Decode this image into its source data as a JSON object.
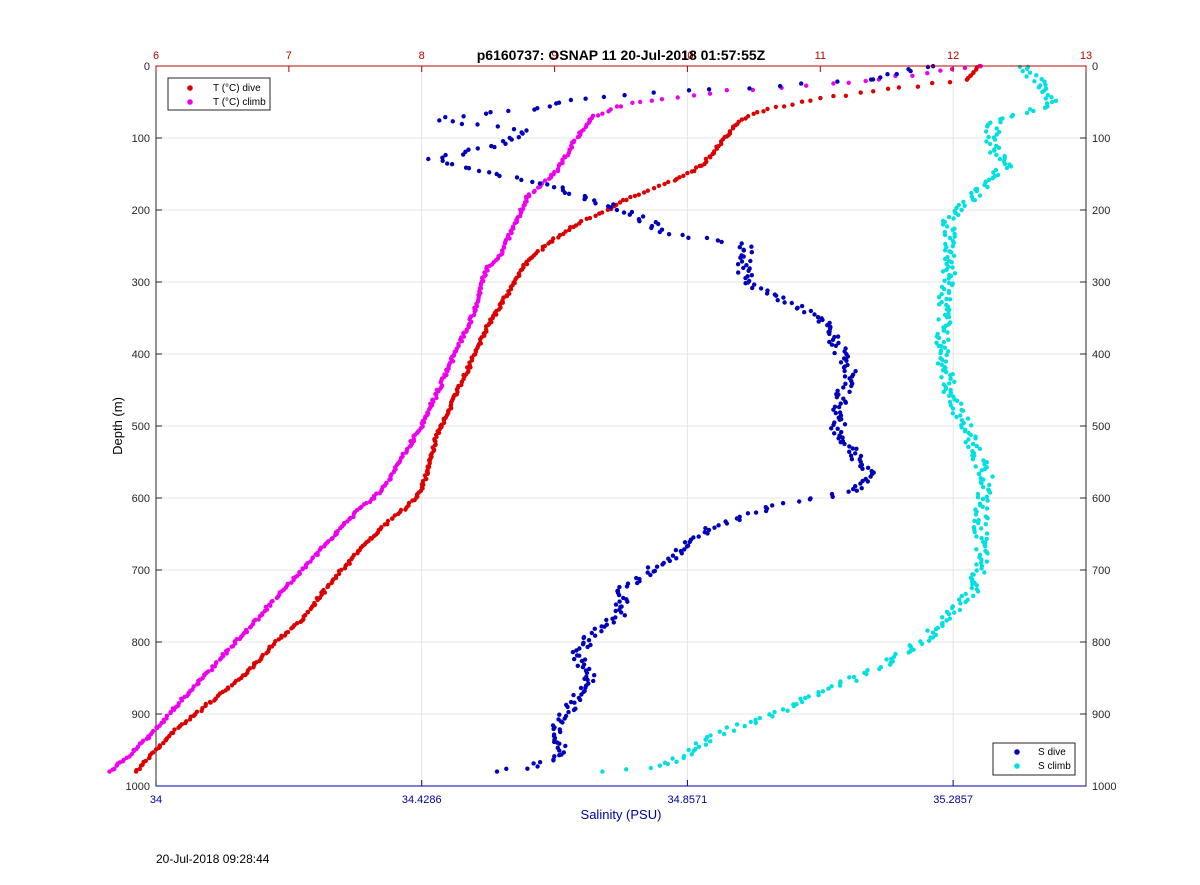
{
  "chart_data": {
    "type": "scatter",
    "title": "p6160737: OSNAP 11 20-Jul-2018 01:57:55Z",
    "ylabel": "Depth (m)",
    "xlabel_bottom": "Salinity (PSU)",
    "xlabel_top": "",
    "ylim": [
      0,
      1000
    ],
    "y_reversed": true,
    "yticks": [
      0,
      100,
      200,
      300,
      400,
      500,
      600,
      700,
      800,
      900,
      1000
    ],
    "top_axis": {
      "range": [
        6,
        13
      ],
      "ticks": [
        6,
        7,
        8,
        9,
        10,
        11,
        12,
        13
      ],
      "color": "#c00000"
    },
    "bottom_axis": {
      "range": [
        34,
        35.5
      ],
      "ticks": [
        34,
        34.4286,
        34.8571,
        35.2857
      ],
      "tick_labels": [
        "34",
        "34.4286",
        "34.8571",
        "35.2857"
      ],
      "color": "#0000a0"
    },
    "grid": true,
    "legends": [
      {
        "position": "top-left",
        "entries": [
          {
            "name": "T (°C) dive",
            "color": "#dd0000"
          },
          {
            "name": "T (°C) climb",
            "color": "#ee00ee"
          }
        ]
      },
      {
        "position": "bottom-right",
        "entries": [
          {
            "name": "S dive",
            "color": "#0000bb"
          },
          {
            "name": "S climb",
            "color": "#00e0e0"
          }
        ]
      }
    ],
    "series": [
      {
        "name": "T (°C) dive",
        "axis": "top",
        "color": "#dd0000",
        "points": [
          [
            12.2,
            0
          ],
          [
            12.1,
            20
          ],
          [
            11.6,
            30
          ],
          [
            11.0,
            45
          ],
          [
            10.6,
            60
          ],
          [
            10.4,
            75
          ],
          [
            10.3,
            95
          ],
          [
            10.2,
            120
          ],
          [
            10.1,
            140
          ],
          [
            9.9,
            160
          ],
          [
            9.6,
            180
          ],
          [
            9.4,
            200
          ],
          [
            9.2,
            215
          ],
          [
            9.0,
            240
          ],
          [
            8.8,
            270
          ],
          [
            8.7,
            300
          ],
          [
            8.6,
            330
          ],
          [
            8.5,
            360
          ],
          [
            8.4,
            400
          ],
          [
            8.3,
            440
          ],
          [
            8.2,
            480
          ],
          [
            8.1,
            520
          ],
          [
            8.05,
            560
          ],
          [
            8.0,
            590
          ],
          [
            7.9,
            610
          ],
          [
            7.7,
            640
          ],
          [
            7.5,
            680
          ],
          [
            7.3,
            720
          ],
          [
            7.1,
            770
          ],
          [
            6.9,
            800
          ],
          [
            6.7,
            840
          ],
          [
            6.5,
            870
          ],
          [
            6.3,
            900
          ],
          [
            6.1,
            930
          ],
          [
            5.95,
            960
          ],
          [
            5.85,
            980
          ]
        ]
      },
      {
        "name": "T (°C) climb",
        "axis": "top",
        "color": "#ee00ee",
        "points": [
          [
            12.2,
            0
          ],
          [
            11.8,
            10
          ],
          [
            11.1,
            25
          ],
          [
            10.3,
            35
          ],
          [
            9.8,
            45
          ],
          [
            9.5,
            55
          ],
          [
            9.3,
            70
          ],
          [
            9.2,
            90
          ],
          [
            9.1,
            120
          ],
          [
            9.0,
            150
          ],
          [
            8.8,
            180
          ],
          [
            8.7,
            220
          ],
          [
            8.6,
            260
          ],
          [
            8.5,
            280
          ],
          [
            8.45,
            300
          ],
          [
            8.4,
            340
          ],
          [
            8.3,
            380
          ],
          [
            8.2,
            420
          ],
          [
            8.1,
            460
          ],
          [
            8.0,
            500
          ],
          [
            7.9,
            530
          ],
          [
            7.8,
            560
          ],
          [
            7.7,
            590
          ],
          [
            7.5,
            620
          ],
          [
            7.3,
            660
          ],
          [
            7.1,
            700
          ],
          [
            6.9,
            740
          ],
          [
            6.7,
            780
          ],
          [
            6.5,
            820
          ],
          [
            6.35,
            850
          ],
          [
            6.2,
            880
          ],
          [
            6.05,
            910
          ],
          [
            5.9,
            940
          ],
          [
            5.75,
            965
          ],
          [
            5.65,
            980
          ]
        ]
      },
      {
        "name": "S dive",
        "axis": "bottom",
        "color": "#0000bb",
        "points": [
          [
            35.25,
            0
          ],
          [
            35.15,
            20
          ],
          [
            34.75,
            40
          ],
          [
            34.65,
            50
          ],
          [
            34.6,
            60
          ],
          [
            34.45,
            75
          ],
          [
            34.6,
            90
          ],
          [
            34.55,
            110
          ],
          [
            34.45,
            130
          ],
          [
            34.55,
            150
          ],
          [
            34.65,
            170
          ],
          [
            34.72,
            190
          ],
          [
            34.78,
            210
          ],
          [
            34.82,
            230
          ],
          [
            34.95,
            250
          ],
          [
            34.95,
            280
          ],
          [
            34.95,
            300
          ],
          [
            35.0,
            320
          ],
          [
            35.05,
            340
          ],
          [
            35.08,
            360
          ],
          [
            35.1,
            390
          ],
          [
            35.12,
            420
          ],
          [
            35.11,
            450
          ],
          [
            35.1,
            480
          ],
          [
            35.1,
            510
          ],
          [
            35.13,
            540
          ],
          [
            35.15,
            570
          ],
          [
            35.13,
            590
          ],
          [
            35.0,
            610
          ],
          [
            34.9,
            640
          ],
          [
            34.85,
            670
          ],
          [
            34.8,
            700
          ],
          [
            34.75,
            730
          ],
          [
            34.75,
            760
          ],
          [
            34.7,
            790
          ],
          [
            34.68,
            820
          ],
          [
            34.7,
            850
          ],
          [
            34.68,
            880
          ],
          [
            34.65,
            910
          ],
          [
            34.65,
            940
          ],
          [
            34.65,
            960
          ],
          [
            34.6,
            975
          ],
          [
            34.55,
            980
          ]
        ]
      },
      {
        "name": "S climb",
        "axis": "bottom",
        "color": "#00e0e0",
        "points": [
          [
            35.4,
            0
          ],
          [
            35.45,
            50
          ],
          [
            35.35,
            80
          ],
          [
            35.35,
            110
          ],
          [
            35.37,
            140
          ],
          [
            35.32,
            180
          ],
          [
            35.28,
            210
          ],
          [
            35.28,
            250
          ],
          [
            35.28,
            290
          ],
          [
            35.27,
            330
          ],
          [
            35.27,
            370
          ],
          [
            35.27,
            410
          ],
          [
            35.28,
            450
          ],
          [
            35.3,
            490
          ],
          [
            35.32,
            530
          ],
          [
            35.34,
            570
          ],
          [
            35.33,
            610
          ],
          [
            35.33,
            650
          ],
          [
            35.33,
            690
          ],
          [
            35.32,
            730
          ],
          [
            35.28,
            760
          ],
          [
            35.25,
            790
          ],
          [
            35.18,
            830
          ],
          [
            35.1,
            860
          ],
          [
            35.05,
            880
          ],
          [
            35.0,
            900
          ],
          [
            34.93,
            920
          ],
          [
            34.88,
            940
          ],
          [
            34.85,
            960
          ],
          [
            34.8,
            975
          ],
          [
            34.72,
            980
          ]
        ]
      }
    ]
  },
  "footer": {
    "timestamp": "20-Jul-2018 09:28:44"
  }
}
